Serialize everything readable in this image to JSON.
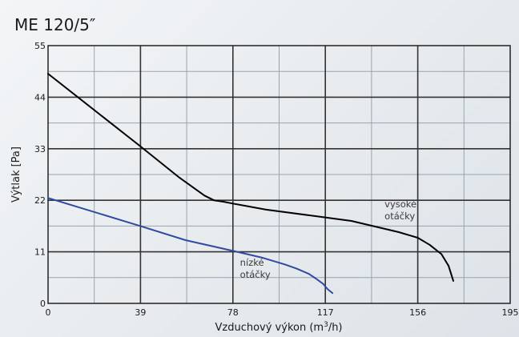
{
  "chart_data": {
    "type": "line",
    "title": "ME 120/5″",
    "xlabel": "Vzduchový výkon (m",
    "xlabel_sup": "3",
    "xlabel_end": "/h)",
    "ylabel": "Výtlak [Pa]",
    "xlim": [
      0,
      195
    ],
    "ylim": [
      0,
      55
    ],
    "x_ticks": [
      "0",
      "39",
      "78",
      "117",
      "156",
      "195"
    ],
    "y_ticks": [
      "0",
      "11",
      "22",
      "33",
      "44",
      "55"
    ],
    "grid": true,
    "colors": {
      "high": "#000000",
      "low": "#2f4aa0",
      "grid_major": "#333333",
      "grid_minor": "#9aa4ad"
    },
    "series": [
      {
        "name": "vysoké otáčky",
        "x": [
          0,
          39,
          55,
          66,
          70,
          74,
          78,
          92,
          110,
          128,
          138,
          148,
          156,
          161,
          166,
          169,
          171
        ],
        "y": [
          49,
          33.5,
          27,
          23,
          22,
          21.7,
          21.3,
          20,
          18.8,
          17.6,
          16.4,
          15.2,
          14,
          12.5,
          10.5,
          8,
          4.8
        ]
      },
      {
        "name": "nízké otáčky",
        "x": [
          0,
          39,
          58,
          78,
          90,
          100,
          105,
          110,
          113,
          116,
          118,
          120
        ],
        "y": [
          22.5,
          16.5,
          13.5,
          11.2,
          9.8,
          8.3,
          7.4,
          6.3,
          5.3,
          4.2,
          3.0,
          2.2
        ]
      }
    ],
    "annotations": [
      {
        "line1": "vysoké",
        "line2": "otáčky",
        "at_x": 142,
        "at_y": 20.5
      },
      {
        "line1": "nízké",
        "line2": "otáčky",
        "at_x": 81,
        "at_y": 8.0
      }
    ]
  }
}
